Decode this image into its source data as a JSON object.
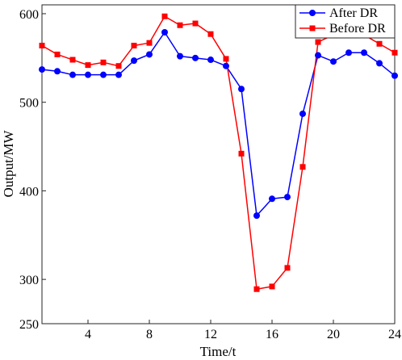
{
  "chart_data": {
    "type": "line",
    "title": "",
    "xlabel": "Time/t",
    "ylabel": "Output/MW",
    "xlim": [
      1,
      24
    ],
    "ylim": [
      250,
      610
    ],
    "xticks": [
      4,
      8,
      12,
      16,
      20,
      24
    ],
    "yticks": [
      250,
      300,
      400,
      500,
      600
    ],
    "grid": false,
    "legend_position": "top-right",
    "x": [
      1,
      2,
      3,
      4,
      5,
      6,
      7,
      8,
      9,
      10,
      11,
      12,
      13,
      14,
      15,
      16,
      17,
      18,
      19,
      20,
      21,
      22,
      23,
      24
    ],
    "series": [
      {
        "name": "After DR",
        "color": "#0000ff",
        "marker": "circle",
        "values": [
          537,
          535,
          531,
          531,
          531,
          531,
          547,
          554,
          579,
          552,
          550,
          548,
          541,
          515,
          372,
          391,
          393,
          487,
          553,
          546,
          556,
          556,
          544,
          530
        ]
      },
      {
        "name": "Before DR",
        "color": "#ff0000",
        "marker": "square",
        "values": [
          564,
          554,
          548,
          542,
          545,
          541,
          564,
          567,
          597,
          587,
          589,
          577,
          549,
          442,
          289,
          292,
          313,
          427,
          568,
          576,
          580,
          576,
          566,
          556
        ]
      }
    ]
  }
}
